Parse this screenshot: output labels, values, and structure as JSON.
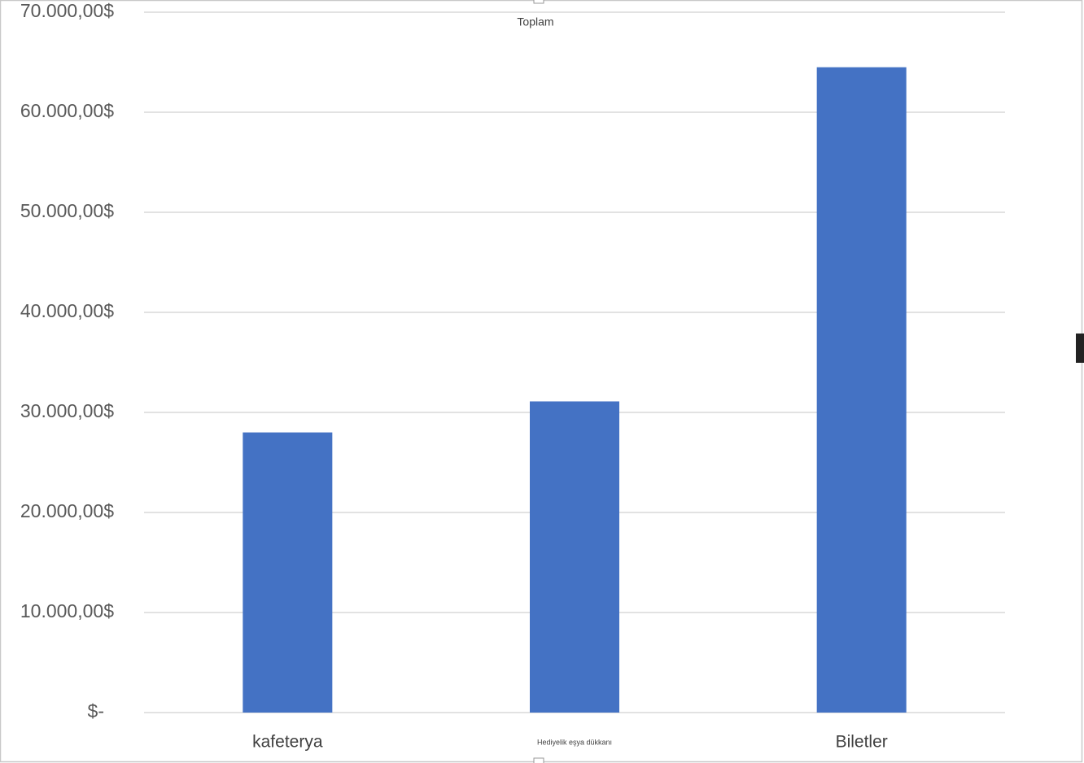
{
  "chart_data": {
    "type": "bar",
    "title": "Toplam",
    "categories": [
      "kafeterya",
      "Hediyelik eşya dükkanı",
      "Biletler"
    ],
    "values": [
      28000,
      31100,
      64500
    ],
    "color": "#4472c4",
    "ylim": [
      0,
      70000
    ],
    "yticks": [
      {
        "value": 0,
        "label": "$-"
      },
      {
        "value": 10000,
        "label": "10.000,00$"
      },
      {
        "value": 20000,
        "label": "20.000,00$"
      },
      {
        "value": 30000,
        "label": "30.000,00$"
      },
      {
        "value": 40000,
        "label": "40.000,00$"
      },
      {
        "value": 50000,
        "label": "50.000,00$"
      },
      {
        "value": 60000,
        "label": "60.000,00$"
      },
      {
        "value": 70000,
        "label": "70.000,00$"
      }
    ],
    "grid": true
  }
}
